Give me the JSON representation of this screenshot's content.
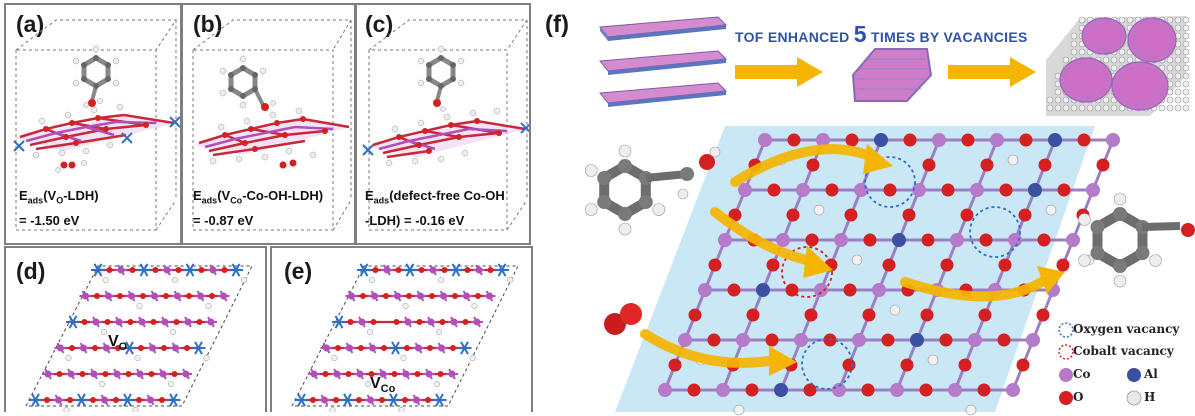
{
  "panels": {
    "a": {
      "label": "(a)",
      "energy_prefix": "E",
      "energy_sub": "ads",
      "energy_paren": "(V",
      "energy_paren_sub": "O",
      "energy_suffix": "-LDH)",
      "energy_value": "= -1.50 eV"
    },
    "b": {
      "label": "(b)",
      "energy_prefix": "E",
      "energy_sub": "ads",
      "energy_paren": "(V",
      "energy_paren_sub": "Co",
      "energy_suffix": "-Co-OH-LDH)",
      "energy_value": "= -0.87 eV"
    },
    "c": {
      "label": "(c)",
      "energy_prefix": "E",
      "energy_sub": "ads",
      "energy_suffix": "(defect-free Co-OH",
      "energy_value": "-LDH)  = -0.16 eV"
    },
    "d": {
      "label": "(d)",
      "vacancy_main": "V",
      "vacancy_sub": "O"
    },
    "e": {
      "label": "(e)",
      "vacancy_main": "V",
      "vacancy_sub": "Co"
    },
    "f": {
      "label": "(f)"
    }
  },
  "tof_banner": {
    "part1": "TOF  ENHANCED ",
    "number": "5",
    "part2": " TIMES BY VACANCIES"
  },
  "legend": {
    "oxygen_vacancy": "Oxygen vacancy",
    "cobalt_vacancy": "Cobalt vacancy",
    "co": "Co",
    "al": "Al",
    "o": "O",
    "h": "H"
  },
  "colors": {
    "cobalt": "#b57ac9",
    "aluminum": "#3b4fa3",
    "oxygen": "#d42020",
    "hydrogen": "#e8e8e8",
    "bond_red": "#c8283a",
    "bond_purple": "#b04fb8",
    "arrow": "#f5b400",
    "lattice_bg": "#bfe3f3",
    "tof_text": "#2f52a8"
  }
}
